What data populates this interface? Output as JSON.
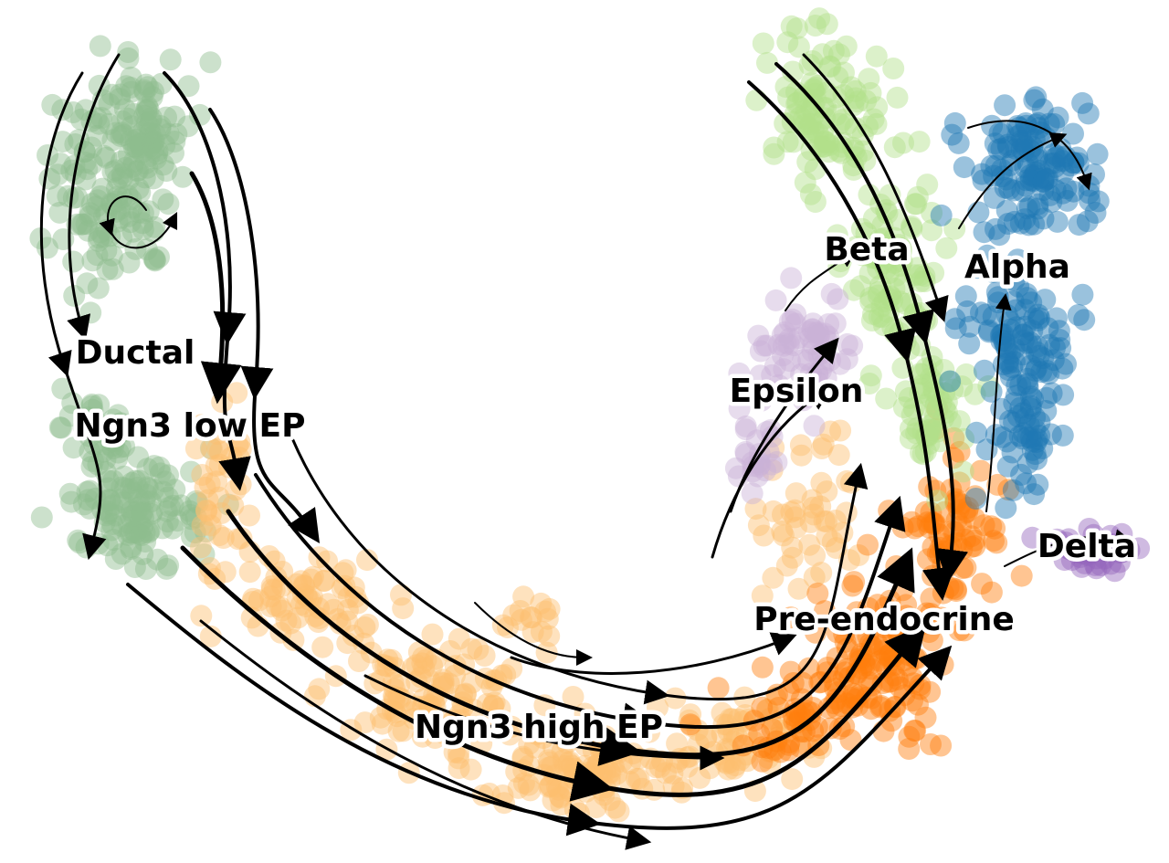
{
  "chart_data": {
    "type": "scatter",
    "title": "",
    "xlabel": "",
    "ylabel": "",
    "grid": false,
    "legend": "on data",
    "overlay": "velocity streamlines",
    "clusters": [
      {
        "name": "Ductal",
        "color": "#8fbc8f"
      },
      {
        "name": "Ngn3 low EP",
        "color": "#8fbc8f"
      },
      {
        "name": "Ngn3 high EP",
        "color": "#fdbf6f"
      },
      {
        "name": "Pre-endocrine",
        "color": "#ff7f0e"
      },
      {
        "name": "Beta",
        "color": "#b2df8a"
      },
      {
        "name": "Alpha",
        "color": "#1f77b4"
      },
      {
        "name": "Delta",
        "color": "#9467bd"
      },
      {
        "name": "Epsilon",
        "color": "#cab2d6"
      }
    ]
  }
}
